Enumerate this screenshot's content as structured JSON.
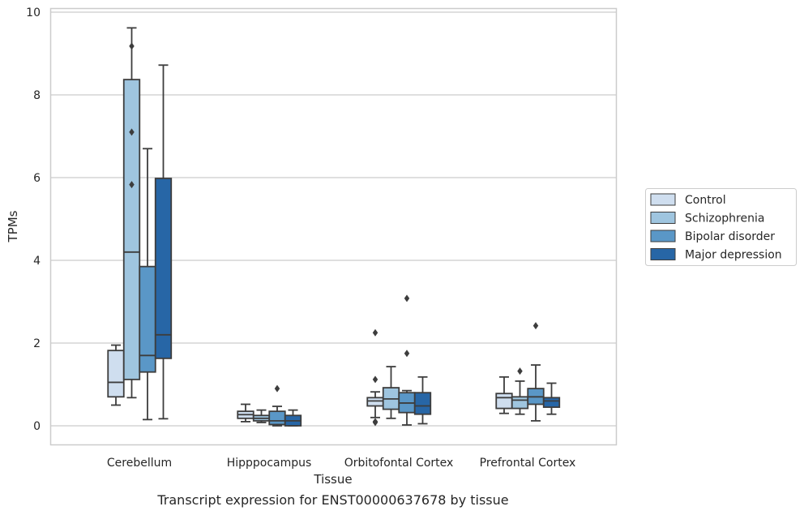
{
  "chart_data": {
    "type": "box",
    "xlabel": "Tissue",
    "ylabel": "TPMs",
    "caption": "Transcript expression for ENST00000637678 by tissue",
    "ylim": [
      -0.45,
      10.1
    ],
    "yticks": [
      0,
      2,
      4,
      6,
      8,
      10
    ],
    "grid": "horizontal",
    "legend_position": "right",
    "categories": [
      "Cerebellum",
      "Hipppocampus",
      "Orbitofontal Cortex",
      "Prefrontal Cortex"
    ],
    "series": [
      {
        "name": "Control",
        "color": "#cfdeef",
        "boxes": [
          {
            "whisker_low": 0.5,
            "q1": 0.7,
            "median": 1.05,
            "q3": 1.82,
            "whisker_high": 1.95,
            "outliers": []
          },
          {
            "whisker_low": 0.1,
            "q1": 0.18,
            "median": 0.27,
            "q3": 0.35,
            "whisker_high": 0.52,
            "outliers": []
          },
          {
            "whisker_low": 0.2,
            "q1": 0.48,
            "median": 0.6,
            "q3": 0.68,
            "whisker_high": 0.82,
            "outliers": [
              2.25,
              1.12,
              0.1,
              0.08
            ]
          },
          {
            "whisker_low": 0.3,
            "q1": 0.42,
            "median": 0.68,
            "q3": 0.78,
            "whisker_high": 1.18,
            "outliers": []
          }
        ]
      },
      {
        "name": "Schizophrenia",
        "color": "#9fc5df",
        "boxes": [
          {
            "whisker_low": 0.68,
            "q1": 1.12,
            "median": 4.2,
            "q3": 8.37,
            "whisker_high": 9.62,
            "outliers": [
              9.18,
              7.1,
              5.83
            ]
          },
          {
            "whisker_low": 0.08,
            "q1": 0.12,
            "median": 0.18,
            "q3": 0.25,
            "whisker_high": 0.38,
            "outliers": []
          },
          {
            "whisker_low": 0.18,
            "q1": 0.4,
            "median": 0.65,
            "q3": 0.92,
            "whisker_high": 1.43,
            "outliers": []
          },
          {
            "whisker_low": 0.28,
            "q1": 0.42,
            "median": 0.62,
            "q3": 0.7,
            "whisker_high": 1.08,
            "outliers": [
              1.32
            ]
          }
        ]
      },
      {
        "name": "Bipolar disorder",
        "color": "#5a97c7",
        "boxes": [
          {
            "whisker_low": 0.15,
            "q1": 1.3,
            "median": 1.7,
            "q3": 3.85,
            "whisker_high": 6.7,
            "outliers": []
          },
          {
            "whisker_low": 0.0,
            "q1": 0.03,
            "median": 0.12,
            "q3": 0.35,
            "whisker_high": 0.47,
            "outliers": [
              0.9
            ]
          },
          {
            "whisker_low": 0.02,
            "q1": 0.32,
            "median": 0.55,
            "q3": 0.8,
            "whisker_high": 0.85,
            "outliers": [
              3.08,
              1.75
            ]
          },
          {
            "whisker_low": 0.12,
            "q1": 0.52,
            "median": 0.7,
            "q3": 0.9,
            "whisker_high": 1.47,
            "outliers": [
              2.42
            ]
          }
        ]
      },
      {
        "name": "Major depression",
        "color": "#2766a6",
        "boxes": [
          {
            "whisker_low": 0.17,
            "q1": 1.63,
            "median": 2.2,
            "q3": 5.98,
            "whisker_high": 8.72,
            "outliers": []
          },
          {
            "whisker_low": 0.0,
            "q1": 0.0,
            "median": 0.12,
            "q3": 0.25,
            "whisker_high": 0.38,
            "outliers": []
          },
          {
            "whisker_low": 0.05,
            "q1": 0.28,
            "median": 0.48,
            "q3": 0.8,
            "whisker_high": 1.18,
            "outliers": []
          },
          {
            "whisker_low": 0.28,
            "q1": 0.45,
            "median": 0.6,
            "q3": 0.68,
            "whisker_high": 1.03,
            "outliers": []
          }
        ]
      }
    ]
  }
}
